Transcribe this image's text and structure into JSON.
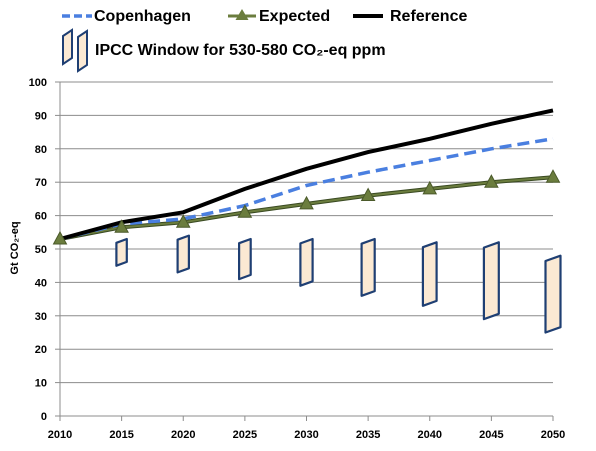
{
  "chart_data": {
    "type": "line",
    "title": "",
    "xlabel": "",
    "ylabel": "Gt CO₂-eq",
    "x": [
      2010,
      2015,
      2020,
      2025,
      2030,
      2035,
      2040,
      2045,
      2050
    ],
    "xlim": [
      2010,
      2050
    ],
    "ylim": [
      0,
      100
    ],
    "yticks": [
      0,
      10,
      20,
      30,
      40,
      50,
      60,
      70,
      80,
      90,
      100
    ],
    "grid": "horizontal",
    "legend_position": "top",
    "series": [
      {
        "name": "Copenhagen",
        "style": "dashed",
        "color": "#4a7fe0",
        "values": [
          53,
          57.5,
          59,
          63,
          69,
          73,
          76.5,
          80,
          83
        ]
      },
      {
        "name": "Expected",
        "style": "solid-with-triangle-markers",
        "color": "#6b7d3e",
        "values": [
          53,
          56.5,
          58,
          61,
          63.5,
          66,
          68,
          70,
          71.5
        ]
      },
      {
        "name": "Reference",
        "style": "solid-thick",
        "color": "#000000",
        "values": [
          53,
          58,
          61,
          68,
          74,
          79,
          83,
          87.5,
          91.5
        ]
      }
    ],
    "window": {
      "name": "IPCC Window for 530-580 CO₂-eq ppm",
      "fill": "#fbe9d3",
      "stroke": "#1f3f73",
      "ranges": [
        {
          "x": 2015,
          "low": 45,
          "high": 53
        },
        {
          "x": 2020,
          "low": 43,
          "high": 54
        },
        {
          "x": 2025,
          "low": 41,
          "high": 53
        },
        {
          "x": 2030,
          "low": 39,
          "high": 53
        },
        {
          "x": 2035,
          "low": 36,
          "high": 53
        },
        {
          "x": 2040,
          "low": 33,
          "high": 52
        },
        {
          "x": 2045,
          "low": 29,
          "high": 52
        },
        {
          "x": 2050,
          "low": 25,
          "high": 48
        }
      ]
    }
  }
}
